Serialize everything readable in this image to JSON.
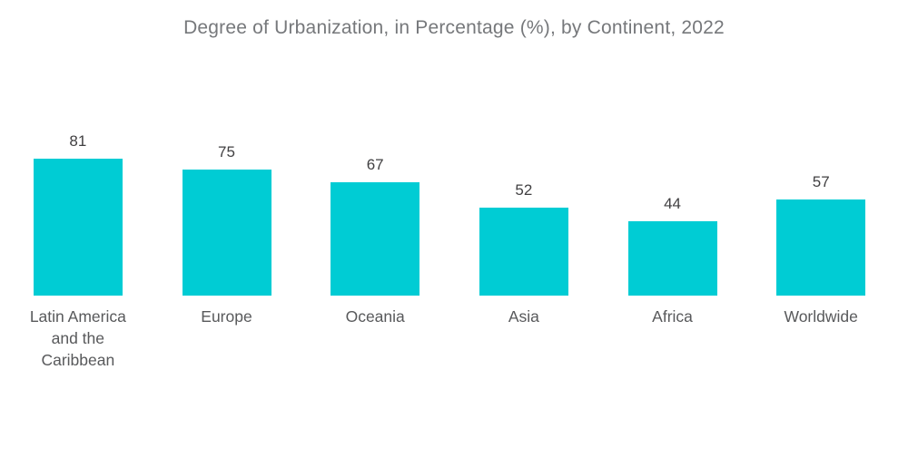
{
  "title": "Degree of Urbanization, in Percentage (%), by Continent, 2022",
  "chart_data": {
    "type": "bar",
    "title": "Degree of Urbanization, in Percentage (%), by Continent, 2022",
    "categories": [
      "Latin America and the Caribbean",
      "Europe",
      "Oceania",
      "Asia",
      "Africa",
      "Worldwide"
    ],
    "values": [
      81,
      75,
      67,
      52,
      44,
      57
    ],
    "xlabel": "",
    "ylabel": "",
    "ylim": [
      0,
      87
    ],
    "grid": false,
    "legend": false,
    "value_labels_shown": true,
    "axis_lines_shown": false
  },
  "colors": {
    "bar": "#00CCD4",
    "value_label": "#414042",
    "category_label": "#58595B",
    "title": "#76787B",
    "background": "#FFFFFF"
  }
}
